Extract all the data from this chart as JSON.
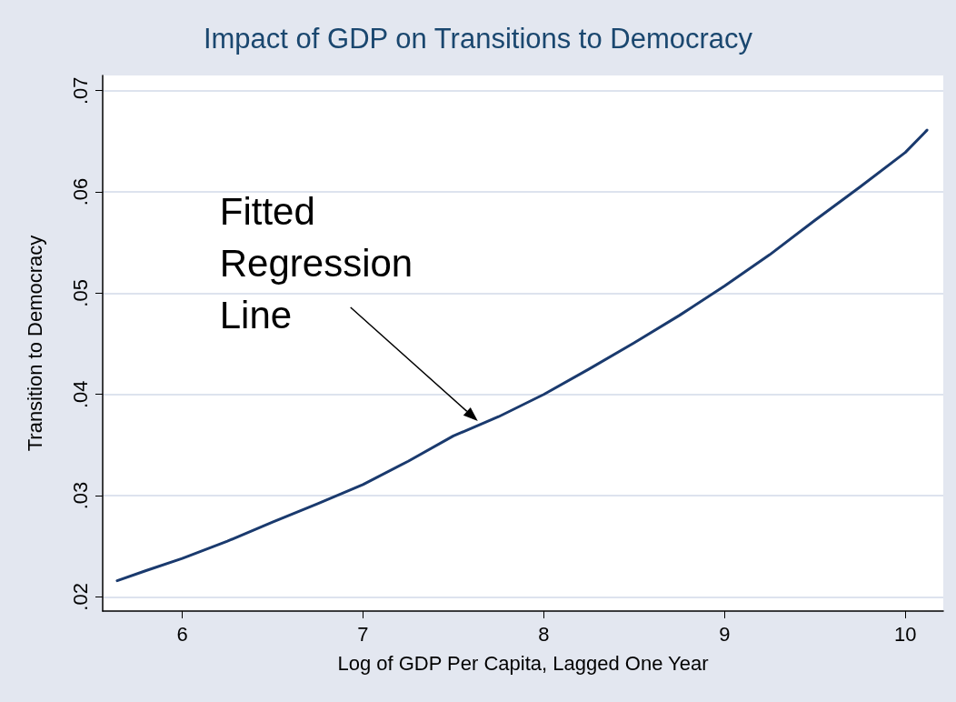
{
  "chart_data": {
    "type": "line",
    "title": "Impact of GDP on Transitions to Democracy",
    "xlabel": "Log of GDP Per Capita, Lagged One Year",
    "ylabel": "Transition to Democracy",
    "x": [
      5.64,
      5.8,
      6,
      6.25,
      6.5,
      6.75,
      7,
      7.25,
      7.5,
      7.75,
      8,
      8.25,
      8.5,
      8.75,
      9,
      9.25,
      9.5,
      9.75,
      10,
      10.12
    ],
    "series": [
      {
        "color": "#1a3a6e",
        "values": [
          0.0216,
          0.0226,
          0.0238,
          0.0255,
          0.0274,
          0.0292,
          0.0311,
          0.0334,
          0.0359,
          0.0378,
          0.04,
          0.0425,
          0.0451,
          0.0478,
          0.0507,
          0.0538,
          0.0572,
          0.0605,
          0.0639,
          0.0661
        ]
      }
    ],
    "xlim": [
      5.56,
      10.21
    ],
    "xticks": [
      6,
      7,
      8,
      9,
      10
    ],
    "ylim": [
      0.0186,
      0.0715
    ],
    "yticks": [
      {
        "value": 0.02,
        "label": ".02"
      },
      {
        "value": 0.03,
        "label": ".03"
      },
      {
        "value": 0.04,
        "label": ".04"
      },
      {
        "value": 0.05,
        "label": ".05"
      },
      {
        "value": 0.06,
        "label": ".06"
      },
      {
        "value": 0.07,
        "label": ".07"
      }
    ],
    "grid": "y",
    "marker": "none",
    "line_style": "solid",
    "annotations": [
      {
        "text": "Fitted Regression Line",
        "x": 7.65,
        "y": 0.0371
      }
    ]
  }
}
